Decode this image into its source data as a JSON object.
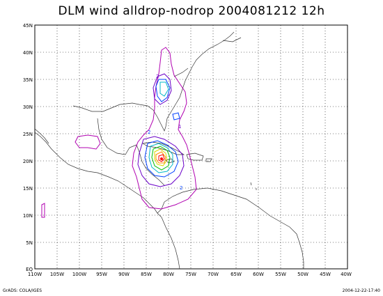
{
  "title": "DLM wind alldrop-nodrop 2004081212 12h",
  "lat_labels": [
    "EQ",
    "5N",
    "10N",
    "15N",
    "20N",
    "25N",
    "30N",
    "35N",
    "40N",
    "45N"
  ],
  "lon_labels": [
    "110W",
    "105W",
    "100W",
    "95W",
    "90W",
    "85W",
    "80W",
    "75W",
    "70W",
    "65W",
    "60W",
    "55W",
    "50W",
    "45W",
    "40W"
  ],
  "footer_left": "GrADS: COLA/IGES",
  "footer_right": "2004-12-22-17:40",
  "map_extent": {
    "lon": [
      -110,
      -40
    ],
    "lat": [
      0,
      45
    ]
  },
  "contour_labels": [
    "2",
    "2",
    "1",
    "2"
  ],
  "colors": {
    "magenta": "#b000b0",
    "purple": "#6a00c8",
    "blue": "#0040ff",
    "cyan": "#00b8c8",
    "green": "#00c000",
    "yellow": "#d8d800",
    "orange": "#ff9000",
    "red": "#ff0000"
  }
}
